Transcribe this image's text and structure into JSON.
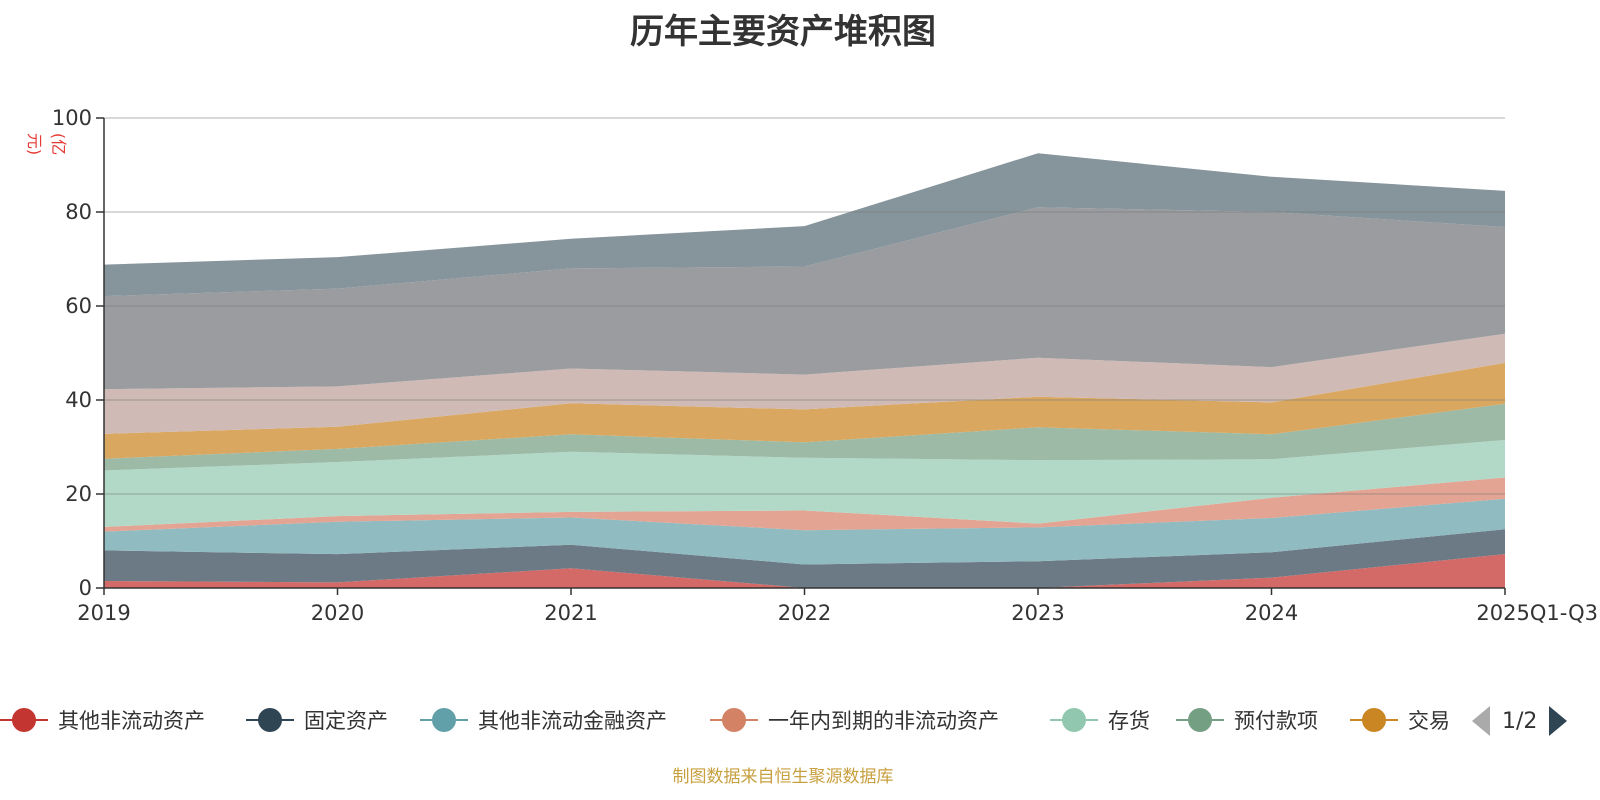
{
  "chart_data": {
    "type": "area",
    "stacked": true,
    "title": "历年主要资产堆积图",
    "unit_label": "(亿元)",
    "categories": [
      "2019",
      "2020",
      "2021",
      "2022",
      "2023",
      "2024",
      "2025Q1-Q3"
    ],
    "ylim": [
      0,
      100
    ],
    "yticks": [
      0,
      20,
      40,
      60,
      80,
      100
    ],
    "grid": true,
    "series": [
      {
        "name": "其他非流动资产",
        "color": "#c23531",
        "fill": "#d46a67",
        "values": [
          1.5,
          1.2,
          4.2,
          0.0,
          0.0,
          2.2,
          7.2
        ],
        "in_legend": true
      },
      {
        "name": "固定资产",
        "color": "#2f4554",
        "fill": "#6c7a86",
        "values": [
          6.5,
          6.0,
          5.0,
          5.0,
          5.7,
          5.4,
          5.3
        ],
        "in_legend": true
      },
      {
        "name": "其他非流动金融资产",
        "color": "#61a0a8",
        "fill": "#8fbbc1",
        "values": [
          4.0,
          6.9,
          5.8,
          7.3,
          7.2,
          7.3,
          6.5
        ],
        "in_legend": true
      },
      {
        "name": "一年内到期的非流动资产",
        "color": "#d48265",
        "fill": "#e3a493",
        "values": [
          1.0,
          1.2,
          1.2,
          4.2,
          0.8,
          4.3,
          4.5
        ],
        "in_legend": true
      },
      {
        "name": "存货",
        "color": "#91c7ae",
        "fill": "#b2d9c7",
        "values": [
          12.0,
          11.5,
          12.8,
          11.2,
          13.5,
          8.2,
          8.0
        ],
        "in_legend": true
      },
      {
        "name": "预付款项",
        "color": "#749f83",
        "fill": "#9cbaa6",
        "values": [
          2.5,
          2.8,
          3.7,
          3.3,
          7.0,
          5.3,
          7.7
        ],
        "in_legend": true
      },
      {
        "name": "交易",
        "color": "#ca8622",
        "fill": "#d9a75f",
        "values": [
          5.3,
          4.7,
          6.6,
          7.0,
          6.5,
          6.8,
          8.7
        ],
        "in_legend": true
      },
      {
        "name": "",
        "color": "#bda29a",
        "fill": "#d0bab5",
        "values": [
          9.5,
          8.6,
          7.4,
          7.4,
          8.3,
          7.5,
          6.2
        ],
        "in_legend": false
      },
      {
        "name": "",
        "color": "#6e7074",
        "fill": "#9a9ca0",
        "values": [
          19.8,
          20.8,
          21.3,
          23.0,
          32.0,
          33.0,
          22.7
        ],
        "in_legend": false
      },
      {
        "name": "",
        "color": "#546570",
        "fill": "#86949b",
        "values": [
          6.7,
          6.7,
          6.3,
          8.6,
          11.5,
          7.5,
          7.7
        ],
        "in_legend": false
      }
    ]
  },
  "legend": {
    "page": "1/2"
  },
  "source": "制图数据来自恒生聚源数据库"
}
